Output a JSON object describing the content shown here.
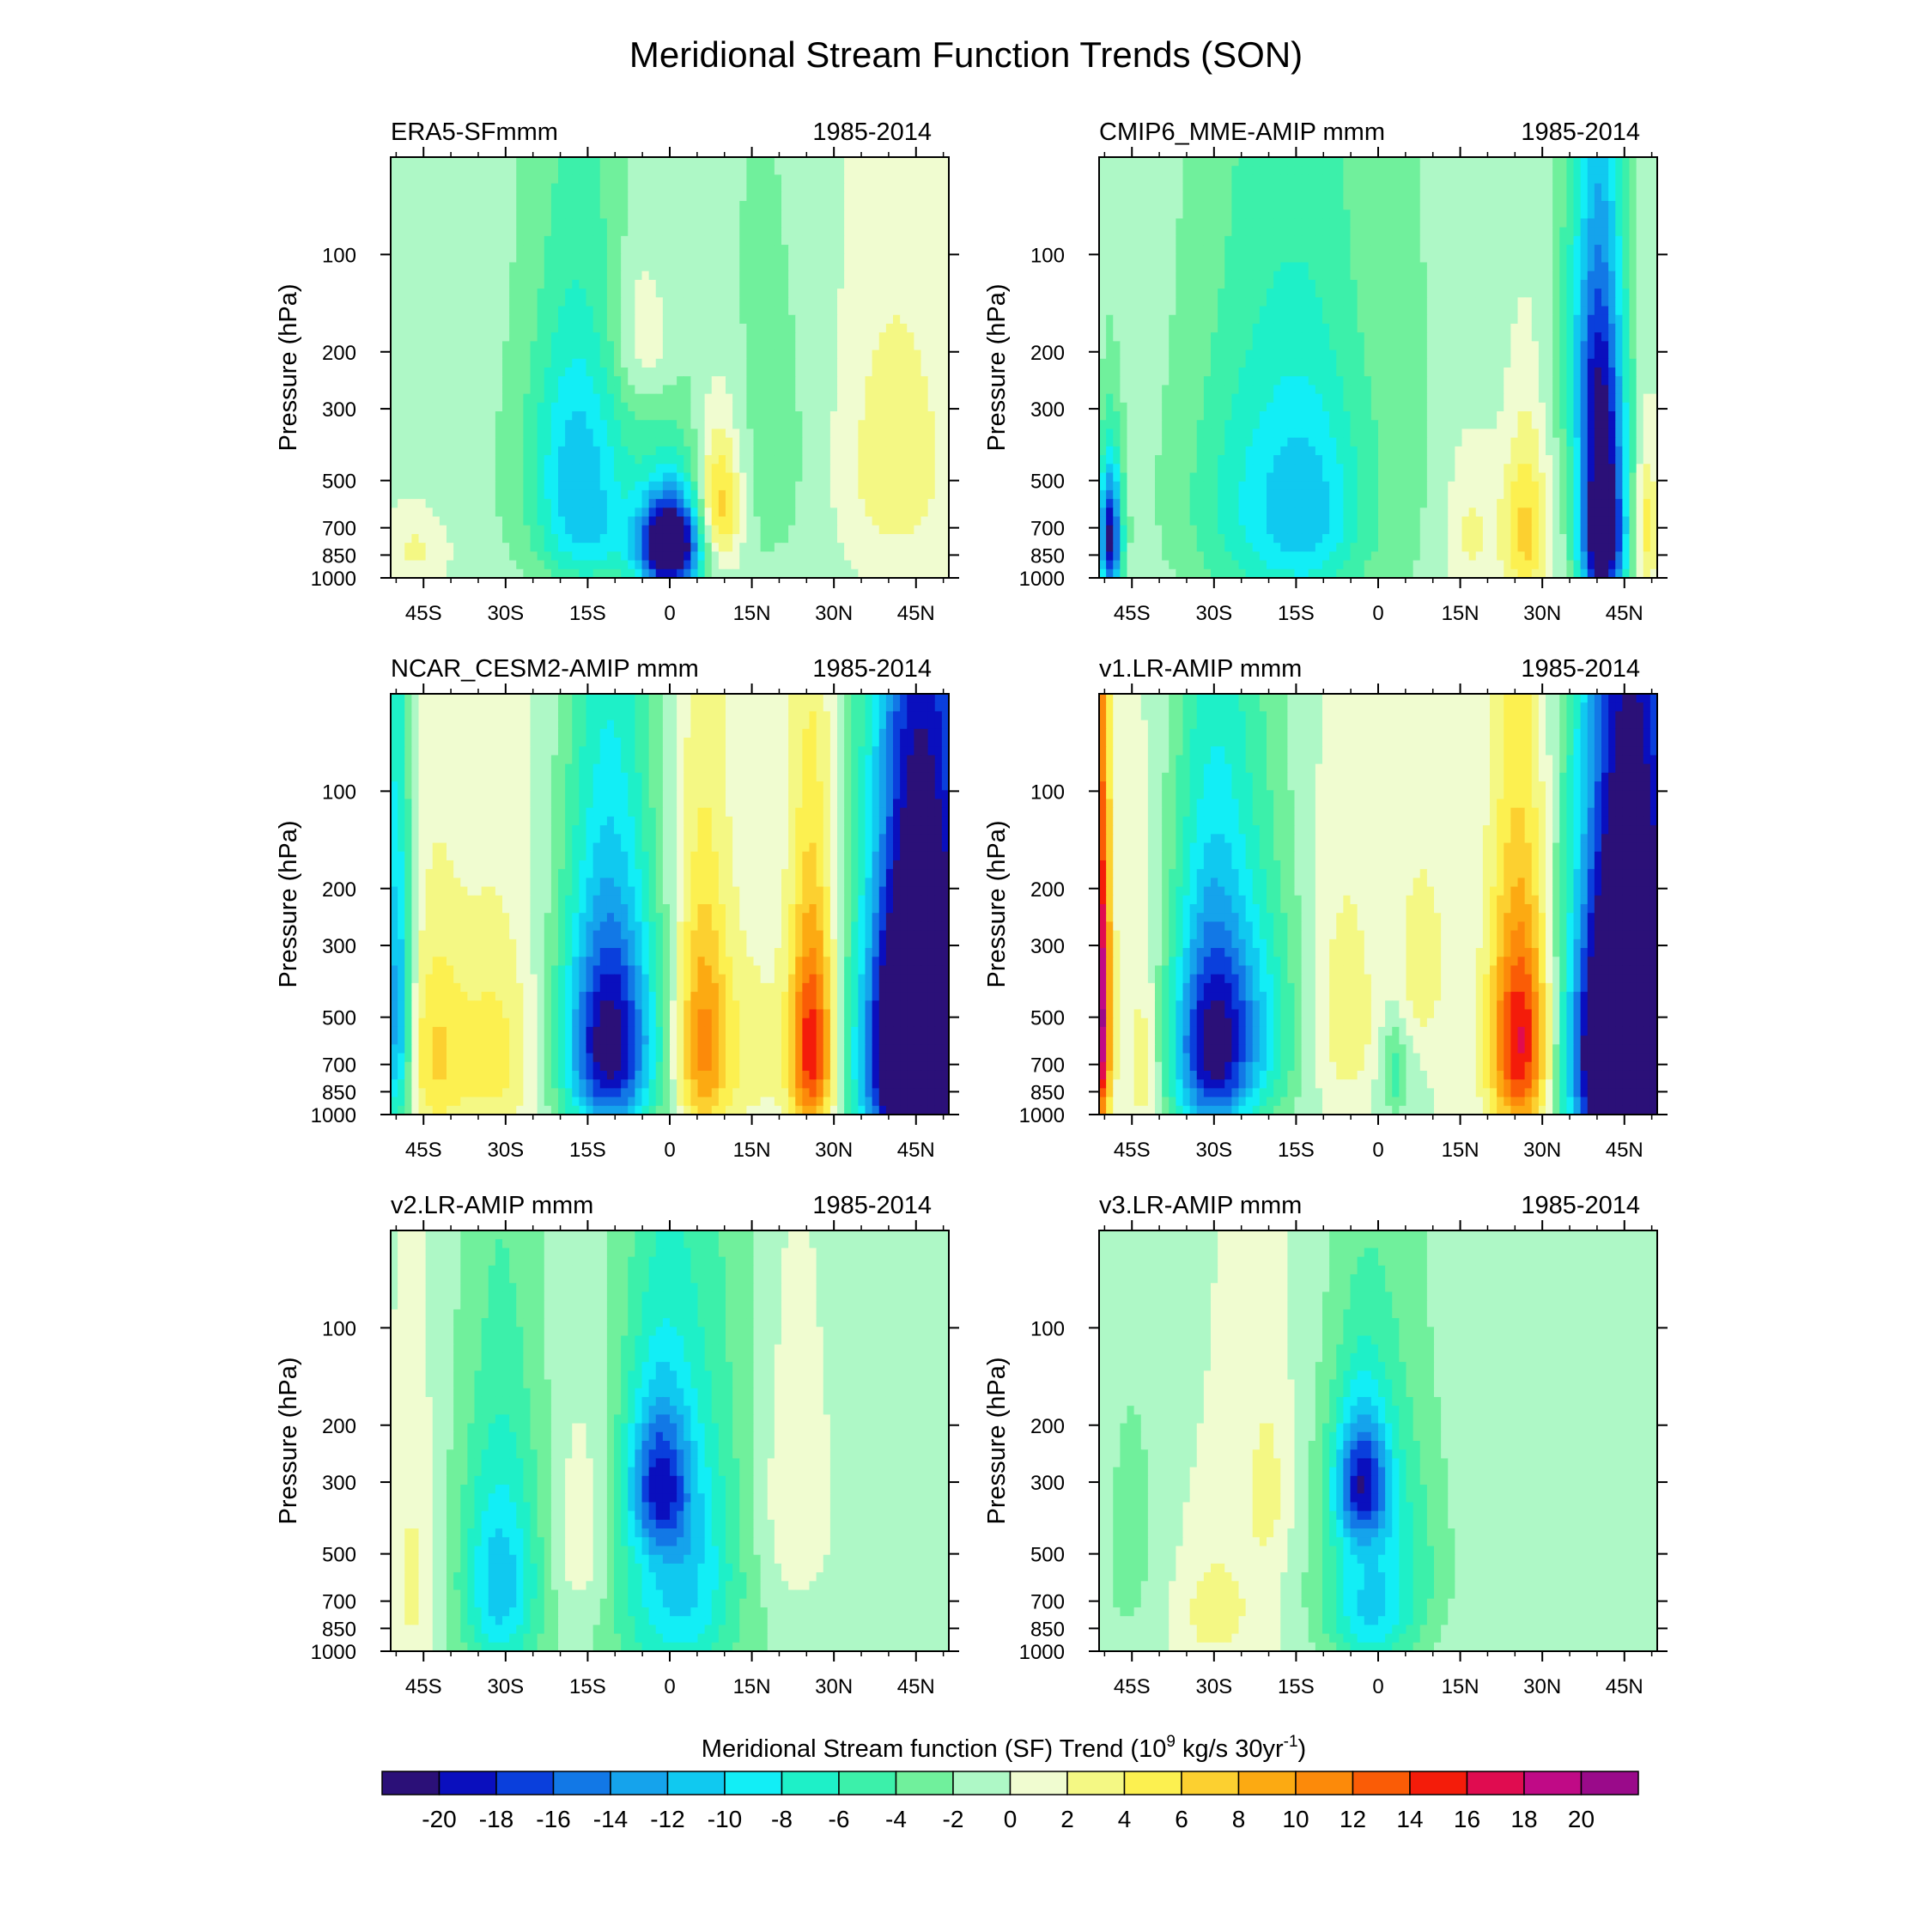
{
  "chart_data": {
    "type": "contour",
    "title": "Meridional Stream Function Trends (SON)",
    "period": "1985-2014",
    "ylabel": "Pressure (hPa)",
    "y_ticks": [
      100,
      200,
      300,
      500,
      700,
      850,
      1000
    ],
    "y_range": [
      50,
      1000
    ],
    "x_ticks": [
      "45S",
      "30S",
      "15S",
      "0",
      "15N",
      "30N",
      "45N"
    ],
    "x_tick_values": [
      -45,
      -30,
      -15,
      0,
      15,
      30,
      45
    ],
    "x_range": [
      -51,
      51
    ],
    "panels": [
      {
        "name": "ERA5-SFmmm",
        "left_label": "ERA5-SFmmm",
        "blobs": [
          {
            "lat": 0,
            "p": 800,
            "wl": 4,
            "wp": 200,
            "amp": -26
          },
          {
            "lat": 9,
            "p": 600,
            "wl": 3,
            "wp": 220,
            "amp": 10
          },
          {
            "lat": -17,
            "p": 400,
            "wl": 6,
            "wp": 240,
            "amp": -8
          },
          {
            "lat": -15,
            "p": 780,
            "wl": 6,
            "wp": 200,
            "amp": -6
          },
          {
            "lat": -5,
            "p": 180,
            "wl": 4,
            "wp": 70,
            "amp": 4
          },
          {
            "lat": 40,
            "p": 450,
            "wl": 8,
            "wp": 300,
            "amp": 4
          },
          {
            "lat": -46,
            "p": 820,
            "wl": 4,
            "wp": 150,
            "amp": 3
          },
          {
            "lat": 20,
            "p": 400,
            "wl": 10,
            "wp": 400,
            "amp": -1.5
          },
          {
            "lat": -8,
            "p": 500,
            "wl": 25,
            "wp": 600,
            "amp": -2.5
          }
        ]
      },
      {
        "name": "CMIP6_MME-AMIP",
        "left_label": "CMIP6_MME-AMIP  mmm",
        "blobs": [
          {
            "lat": 41,
            "p": 700,
            "wl": 3,
            "wp": 380,
            "amp": -26
          },
          {
            "lat": 39,
            "p": 200,
            "wl": 4,
            "wp": 150,
            "amp": -8
          },
          {
            "lat": 27,
            "p": 720,
            "wl": 3,
            "wp": 320,
            "amp": 8
          },
          {
            "lat": 17,
            "p": 720,
            "wl": 4,
            "wp": 300,
            "amp": 4
          },
          {
            "lat": -18,
            "p": 600,
            "wl": 11,
            "wp": 420,
            "amp": -8
          },
          {
            "lat": -12,
            "p": 650,
            "wl": 5,
            "wp": 300,
            "amp": -3
          },
          {
            "lat": -49,
            "p": 750,
            "wl": 1.5,
            "wp": 250,
            "amp": -20
          },
          {
            "lat": 49,
            "p": 700,
            "wl": 1.5,
            "wp": 250,
            "amp": 6
          },
          {
            "lat": 0,
            "p": 400,
            "wl": 35,
            "wp": 800,
            "amp": -2
          }
        ]
      },
      {
        "name": "NCAR_CESM2-AMIP",
        "left_label": "NCAR_CESM2-AMIP  mmm",
        "blobs": [
          {
            "lat": 46,
            "p": 650,
            "wl": 7,
            "wp": 500,
            "amp": -40
          },
          {
            "lat": 26,
            "p": 620,
            "wl": 3,
            "wp": 350,
            "amp": 16
          },
          {
            "lat": 6,
            "p": 600,
            "wl": 3.5,
            "wp": 350,
            "amp": 11
          },
          {
            "lat": -11,
            "p": 600,
            "wl": 6,
            "wp": 380,
            "amp": -22
          },
          {
            "lat": -32,
            "p": 650,
            "wl": 5,
            "wp": 330,
            "amp": 5
          },
          {
            "lat": -43,
            "p": 650,
            "wl": 4,
            "wp": 330,
            "amp": 6
          },
          {
            "lat": -50,
            "p": 500,
            "wl": 2,
            "wp": 400,
            "amp": -14
          },
          {
            "lat": 15,
            "p": 650,
            "wl": 4,
            "wp": 300,
            "amp": 3
          }
        ]
      },
      {
        "name": "v1.LR-AMIP",
        "left_label": "v1.LR-AMIP  mmm",
        "blobs": [
          {
            "lat": 46,
            "p": 650,
            "wl": 7,
            "wp": 500,
            "amp": -42
          },
          {
            "lat": 26,
            "p": 600,
            "wl": 4,
            "wp": 350,
            "amp": 17
          },
          {
            "lat": -31,
            "p": 620,
            "wl": 5,
            "wp": 380,
            "amp": -18
          },
          {
            "lat": -23,
            "p": 550,
            "wl": 6,
            "wp": 350,
            "amp": -9
          },
          {
            "lat": -6,
            "p": 500,
            "wl": 4,
            "wp": 250,
            "amp": 4
          },
          {
            "lat": 8,
            "p": 350,
            "wl": 3,
            "wp": 150,
            "amp": 4
          },
          {
            "lat": 3,
            "p": 750,
            "wl": 2,
            "wp": 180,
            "amp": -5
          },
          {
            "lat": -51,
            "p": 500,
            "wl": 1.5,
            "wp": 400,
            "amp": 22
          },
          {
            "lat": -43,
            "p": 700,
            "wl": 2,
            "wp": 300,
            "amp": 4
          }
        ]
      },
      {
        "name": "v2.LR-AMIP",
        "left_label": "v2.LR-AMIP  mmm",
        "blobs": [
          {
            "lat": -2,
            "p": 300,
            "wl": 4,
            "wp": 120,
            "amp": -12
          },
          {
            "lat": 0,
            "p": 650,
            "wl": 7,
            "wp": 400,
            "amp": -7
          },
          {
            "lat": 6,
            "p": 500,
            "wl": 6,
            "wp": 400,
            "amp": -3
          },
          {
            "lat": -31,
            "p": 620,
            "wl": 5,
            "wp": 350,
            "amp": -10
          },
          {
            "lat": -16,
            "p": 450,
            "wl": 4,
            "wp": 250,
            "amp": 3.5
          },
          {
            "lat": -47,
            "p": 600,
            "wl": 3,
            "wp": 400,
            "amp": 3.5
          },
          {
            "lat": 23,
            "p": 350,
            "wl": 5,
            "wp": 250,
            "amp": 3.5
          },
          {
            "lat": 0,
            "p": 500,
            "wl": 40,
            "wp": 900,
            "amp": -2
          }
        ]
      },
      {
        "name": "v3.LR-AMIP",
        "left_label": "v3.LR-AMIP  mmm",
        "blobs": [
          {
            "lat": -3,
            "p": 300,
            "wl": 3.5,
            "wp": 100,
            "amp": -14
          },
          {
            "lat": 0,
            "p": 550,
            "wl": 8,
            "wp": 380,
            "amp": -8
          },
          {
            "lat": -2,
            "p": 800,
            "wl": 5,
            "wp": 200,
            "amp": -4
          },
          {
            "lat": -30,
            "p": 750,
            "wl": 6,
            "wp": 250,
            "amp": 3
          },
          {
            "lat": -20,
            "p": 320,
            "wl": 3,
            "wp": 150,
            "amp": 3
          },
          {
            "lat": 35,
            "p": 300,
            "wl": 10,
            "wp": 600,
            "amp": -1.5
          },
          {
            "lat": -45,
            "p": 500,
            "wl": 6,
            "wp": 500,
            "amp": -2.5
          }
        ]
      }
    ],
    "colorbar": {
      "title_prefix": "Meridional Stream function (SF) Trend (10",
      "title_exp1": "9",
      "title_mid": " kg/s 30yr",
      "title_exp2": "-1",
      "title_suffix": ")",
      "levels": [
        -20,
        -18,
        -16,
        -14,
        -12,
        -10,
        -8,
        -6,
        -4,
        -2,
        0,
        2,
        4,
        6,
        8,
        10,
        12,
        14,
        16,
        18,
        20
      ],
      "labels": [
        "-20",
        "-18",
        "-16",
        "-14",
        "-12",
        "-10",
        "-8",
        "-6",
        "-4",
        "-2",
        "0",
        "2",
        "4",
        "6",
        "8",
        "10",
        "12",
        "14",
        "16",
        "18",
        "20"
      ],
      "colors": [
        "#2b1078",
        "#0a0fbe",
        "#0a3fdc",
        "#1278e6",
        "#15a3ec",
        "#10c9f0",
        "#12eef6",
        "#1ef0c8",
        "#3cf0aa",
        "#70f09c",
        "#aef8c6",
        "#f0fcd0",
        "#f4f884",
        "#fcf050",
        "#fcd030",
        "#fcaa12",
        "#fc8a0a",
        "#fa5c06",
        "#f41c0a",
        "#e00c50",
        "#c00a86",
        "#9a0a8a"
      ]
    }
  }
}
